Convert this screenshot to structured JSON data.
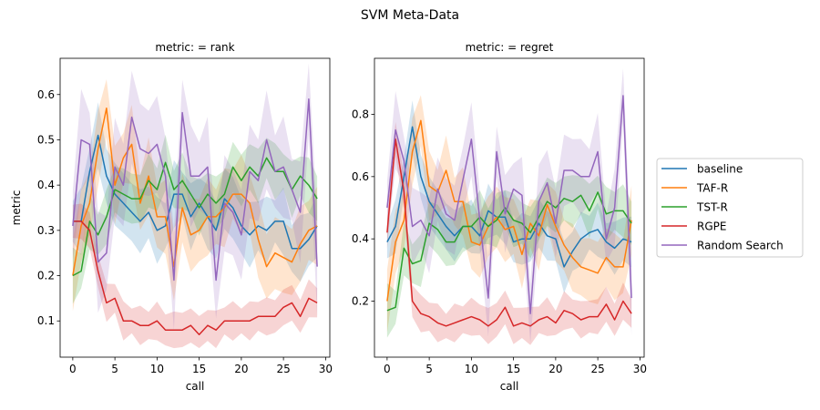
{
  "figure": {
    "suptitle": "SVM Meta-Data"
  },
  "legend": {
    "placement": "right",
    "entries": [
      {
        "name": "baseline",
        "color": "#1f77b4"
      },
      {
        "name": "TAF-R",
        "color": "#ff7f0e"
      },
      {
        "name": "TST-R",
        "color": "#2ca02c"
      },
      {
        "name": "RGPE",
        "color": "#d62728"
      },
      {
        "name": "Random Search",
        "color": "#9467bd"
      }
    ]
  },
  "chart_data": [
    {
      "type": "line",
      "title": "metric:  = rank",
      "xlabel": "call",
      "ylabel": "metric",
      "xlim": [
        -1.5,
        30.5
      ],
      "ylim": [
        0.02,
        0.68
      ],
      "xticks": [
        0,
        5,
        10,
        15,
        20,
        25,
        30
      ],
      "yticks": [
        0.1,
        0.2,
        0.3,
        0.4,
        0.5,
        0.6
      ],
      "yticklabels": [
        "0.1",
        "0.2",
        "0.3",
        "0.4",
        "0.5",
        "0.6"
      ],
      "grid": false,
      "x": [
        0,
        1,
        2,
        3,
        4,
        5,
        6,
        7,
        8,
        9,
        10,
        11,
        12,
        13,
        14,
        15,
        16,
        17,
        18,
        19,
        20,
        21,
        22,
        23,
        24,
        25,
        26,
        27,
        28,
        29
      ],
      "series": [
        {
          "name": "baseline",
          "color": "#1f77b4",
          "band": 0.06,
          "values": [
            0.32,
            0.32,
            0.43,
            0.51,
            0.42,
            0.38,
            0.36,
            0.34,
            0.32,
            0.34,
            0.3,
            0.31,
            0.38,
            0.38,
            0.33,
            0.36,
            0.33,
            0.3,
            0.37,
            0.35,
            0.31,
            0.29,
            0.31,
            0.3,
            0.32,
            0.32,
            0.26,
            0.26,
            0.28,
            0.31
          ]
        },
        {
          "name": "TAF-R",
          "color": "#ff7f0e",
          "band": 0.07,
          "values": [
            0.2,
            0.31,
            0.36,
            0.48,
            0.57,
            0.4,
            0.46,
            0.49,
            0.36,
            0.42,
            0.33,
            0.33,
            0.22,
            0.35,
            0.29,
            0.3,
            0.33,
            0.33,
            0.35,
            0.38,
            0.38,
            0.36,
            0.28,
            0.22,
            0.25,
            0.24,
            0.23,
            0.27,
            0.3,
            0.31
          ]
        },
        {
          "name": "TST-R",
          "color": "#2ca02c",
          "band": 0.05,
          "values": [
            0.2,
            0.21,
            0.32,
            0.29,
            0.33,
            0.39,
            0.38,
            0.37,
            0.37,
            0.41,
            0.39,
            0.45,
            0.39,
            0.41,
            0.38,
            0.35,
            0.38,
            0.36,
            0.38,
            0.44,
            0.41,
            0.44,
            0.42,
            0.46,
            0.43,
            0.43,
            0.39,
            0.42,
            0.4,
            0.37
          ]
        },
        {
          "name": "RGPE",
          "color": "#d62728",
          "band": 0.035,
          "values": [
            0.32,
            0.32,
            0.3,
            0.21,
            0.14,
            0.15,
            0.1,
            0.1,
            0.09,
            0.09,
            0.1,
            0.08,
            0.08,
            0.08,
            0.09,
            0.07,
            0.09,
            0.08,
            0.1,
            0.1,
            0.1,
            0.1,
            0.11,
            0.11,
            0.11,
            0.13,
            0.14,
            0.11,
            0.15,
            0.14
          ]
        },
        {
          "name": "Random Search",
          "color": "#9467bd",
          "band": 0.09,
          "values": [
            0.31,
            0.5,
            0.49,
            0.23,
            0.25,
            0.44,
            0.4,
            0.55,
            0.48,
            0.47,
            0.49,
            0.42,
            0.19,
            0.56,
            0.42,
            0.42,
            0.44,
            0.19,
            0.36,
            0.34,
            0.29,
            0.43,
            0.41,
            0.5,
            0.43,
            0.44,
            0.39,
            0.34,
            0.59,
            0.22
          ]
        }
      ]
    },
    {
      "type": "line",
      "title": "metric:  = regret",
      "xlabel": "call",
      "ylabel": "",
      "xlim": [
        -1.5,
        30.5
      ],
      "ylim": [
        0.02,
        0.98
      ],
      "xticks": [
        0,
        5,
        10,
        15,
        20,
        25,
        30
      ],
      "yticks": [
        0.2,
        0.4,
        0.6,
        0.8
      ],
      "yticklabels": [
        "0.2",
        "0.4",
        "0.6",
        "0.8"
      ],
      "grid": false,
      "x": [
        0,
        1,
        2,
        3,
        4,
        5,
        6,
        7,
        8,
        9,
        10,
        11,
        12,
        13,
        14,
        15,
        16,
        17,
        18,
        19,
        20,
        21,
        22,
        23,
        24,
        25,
        26,
        27,
        28,
        29
      ],
      "series": [
        {
          "name": "baseline",
          "color": "#1f77b4",
          "band": 0.07,
          "values": [
            0.39,
            0.44,
            0.6,
            0.76,
            0.6,
            0.52,
            0.48,
            0.44,
            0.41,
            0.44,
            0.44,
            0.41,
            0.49,
            0.47,
            0.47,
            0.39,
            0.4,
            0.4,
            0.45,
            0.41,
            0.4,
            0.31,
            0.36,
            0.4,
            0.42,
            0.43,
            0.39,
            0.37,
            0.4,
            0.39
          ]
        },
        {
          "name": "TAF-R",
          "color": "#ff7f0e",
          "band": 0.09,
          "values": [
            0.2,
            0.39,
            0.46,
            0.68,
            0.78,
            0.57,
            0.55,
            0.62,
            0.52,
            0.52,
            0.39,
            0.38,
            0.44,
            0.47,
            0.43,
            0.44,
            0.35,
            0.45,
            0.41,
            0.51,
            0.44,
            0.38,
            0.34,
            0.31,
            0.3,
            0.29,
            0.34,
            0.31,
            0.31,
            0.46
          ]
        },
        {
          "name": "TST-R",
          "color": "#2ca02c",
          "band": 0.07,
          "values": [
            0.17,
            0.18,
            0.37,
            0.32,
            0.33,
            0.45,
            0.43,
            0.39,
            0.39,
            0.44,
            0.44,
            0.47,
            0.44,
            0.46,
            0.5,
            0.46,
            0.45,
            0.42,
            0.47,
            0.52,
            0.5,
            0.53,
            0.52,
            0.54,
            0.49,
            0.55,
            0.48,
            0.49,
            0.49,
            0.45
          ]
        },
        {
          "name": "RGPE",
          "color": "#d62728",
          "band": 0.05,
          "values": [
            0.42,
            0.72,
            0.55,
            0.2,
            0.16,
            0.15,
            0.13,
            0.12,
            0.13,
            0.14,
            0.15,
            0.14,
            0.12,
            0.14,
            0.18,
            0.12,
            0.13,
            0.12,
            0.14,
            0.15,
            0.13,
            0.17,
            0.16,
            0.14,
            0.15,
            0.15,
            0.19,
            0.14,
            0.2,
            0.16
          ]
        },
        {
          "name": "Random Search",
          "color": "#9467bd",
          "band": 0.1,
          "values": [
            0.5,
            0.75,
            0.65,
            0.44,
            0.46,
            0.41,
            0.56,
            0.48,
            0.46,
            0.59,
            0.72,
            0.46,
            0.21,
            0.68,
            0.48,
            0.56,
            0.54,
            0.16,
            0.52,
            0.58,
            0.45,
            0.62,
            0.62,
            0.6,
            0.6,
            0.68,
            0.4,
            0.5,
            0.86,
            0.21
          ]
        }
      ]
    }
  ]
}
